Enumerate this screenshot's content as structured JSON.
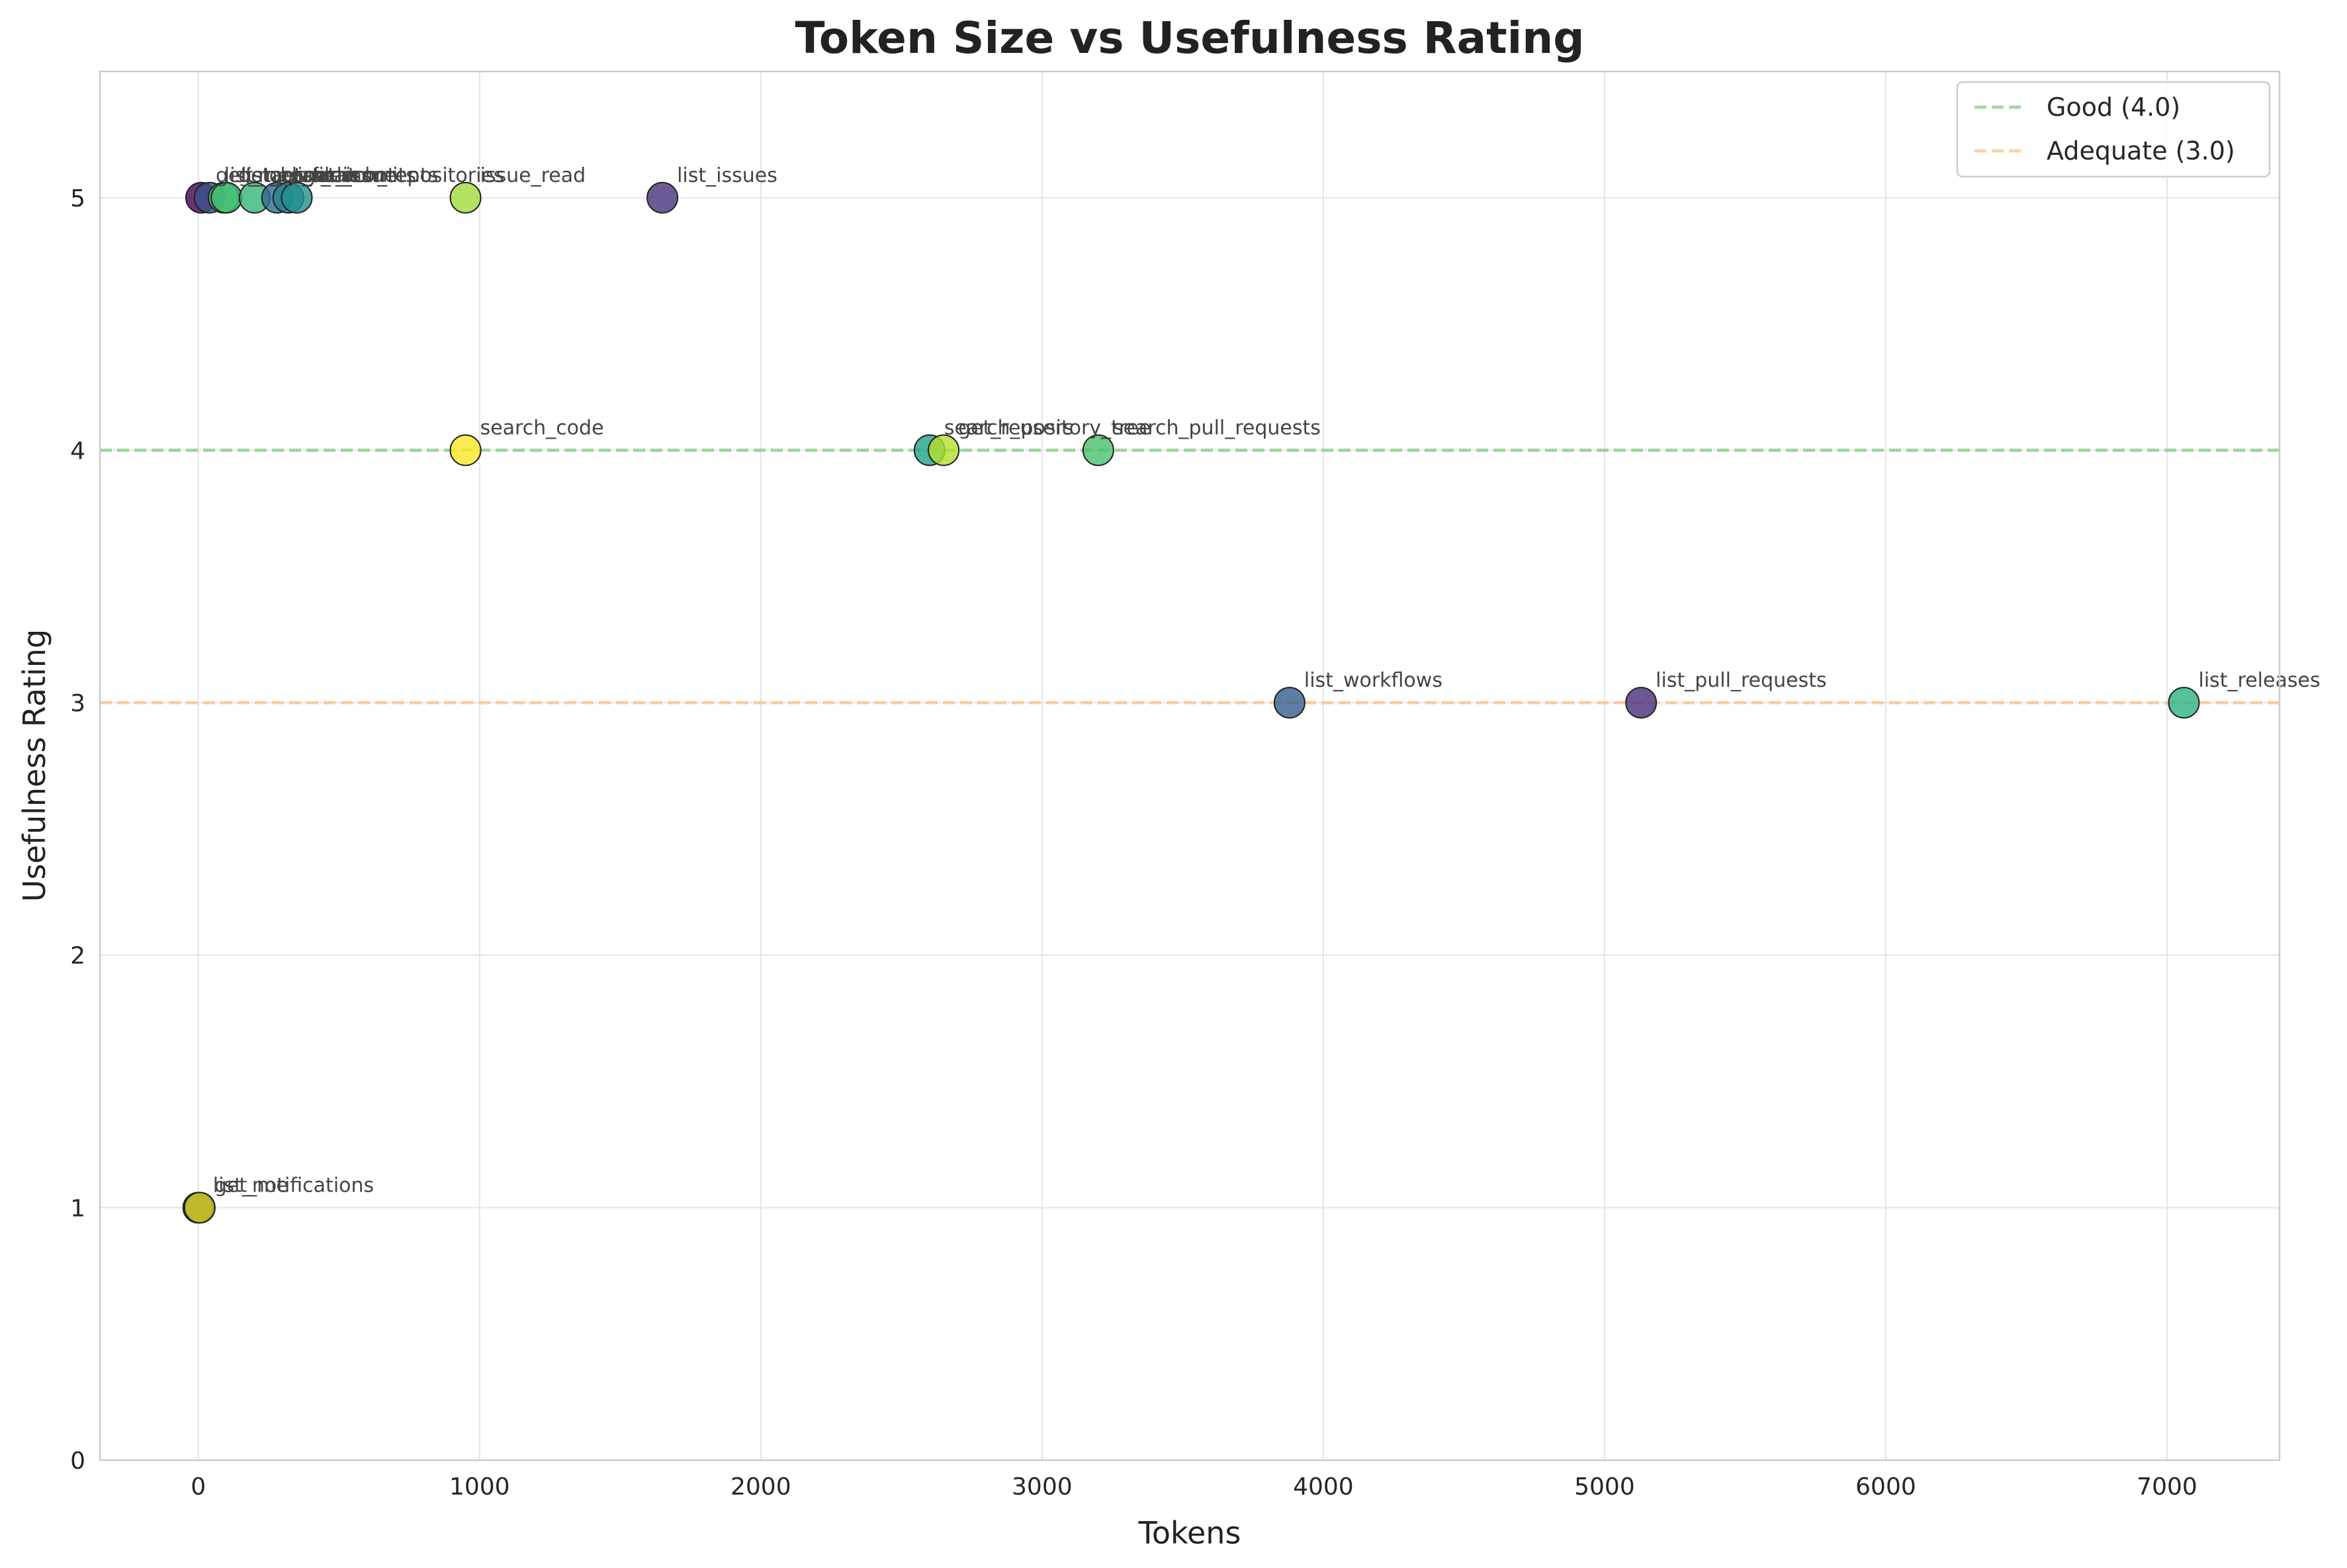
{
  "chart_data": {
    "type": "scatter",
    "title": "Token Size vs Usefulness Rating",
    "xlabel": "Tokens",
    "ylabel": "Usefulness Rating",
    "xlim": [
      -350,
      7400
    ],
    "ylim": [
      0,
      5.5
    ],
    "xticks": [
      0,
      1000,
      2000,
      3000,
      4000,
      5000,
      6000,
      7000
    ],
    "yticks": [
      0,
      1,
      2,
      3,
      4,
      5
    ],
    "grid": true,
    "legend_position": "top-right",
    "reference_lines": [
      {
        "name": "Good (4.0)",
        "y": 4.0,
        "color": "#7fc97f"
      },
      {
        "name": "Adequate (3.0)",
        "y": 3.0,
        "color": "#fdc086"
      }
    ],
    "points": [
      {
        "label": "get_me",
        "x": 10,
        "y": 5,
        "color": "#440154"
      },
      {
        "label": "list_tags",
        "x": 40,
        "y": 5,
        "color": "#3b528b"
      },
      {
        "label": "get_commit",
        "x": 90,
        "y": 5,
        "color": "#5ec962"
      },
      {
        "label": "list_branches",
        "x": 100,
        "y": 5,
        "color": "#3cbc75"
      },
      {
        "label": "get_file_contents",
        "x": 200,
        "y": 5,
        "color": "#35b779"
      },
      {
        "label": "list_commits",
        "x": 280,
        "y": 5,
        "color": "#31688e"
      },
      {
        "label": "get_issue",
        "x": 320,
        "y": 5,
        "color": "#26828e"
      },
      {
        "label": "search_repositories",
        "x": 350,
        "y": 5,
        "color": "#21918c"
      },
      {
        "label": "issue_read",
        "x": 950,
        "y": 5,
        "color": "#a0da39"
      },
      {
        "label": "list_issues",
        "x": 1650,
        "y": 5,
        "color": "#46337e"
      },
      {
        "label": "search_code",
        "x": 950,
        "y": 4,
        "color": "#fde725"
      },
      {
        "label": "search_users",
        "x": 2600,
        "y": 4,
        "color": "#1fa187"
      },
      {
        "label": "get_repository_tree",
        "x": 2650,
        "y": 4,
        "color": "#b5de2b"
      },
      {
        "label": "search_pull_requests",
        "x": 3200,
        "y": 4,
        "color": "#4ac16d"
      },
      {
        "label": "list_workflows",
        "x": 3880,
        "y": 3,
        "color": "#365c8d"
      },
      {
        "label": "list_pull_requests",
        "x": 5130,
        "y": 3,
        "color": "#472d7b"
      },
      {
        "label": "list_releases",
        "x": 7060,
        "y": 3,
        "color": "#2db27d"
      },
      {
        "label": "list_notifications",
        "x": 0,
        "y": 1,
        "color": "#d8c51c"
      },
      {
        "label": "get_me",
        "x": 5,
        "y": 1,
        "color": "#b8b024"
      }
    ]
  }
}
